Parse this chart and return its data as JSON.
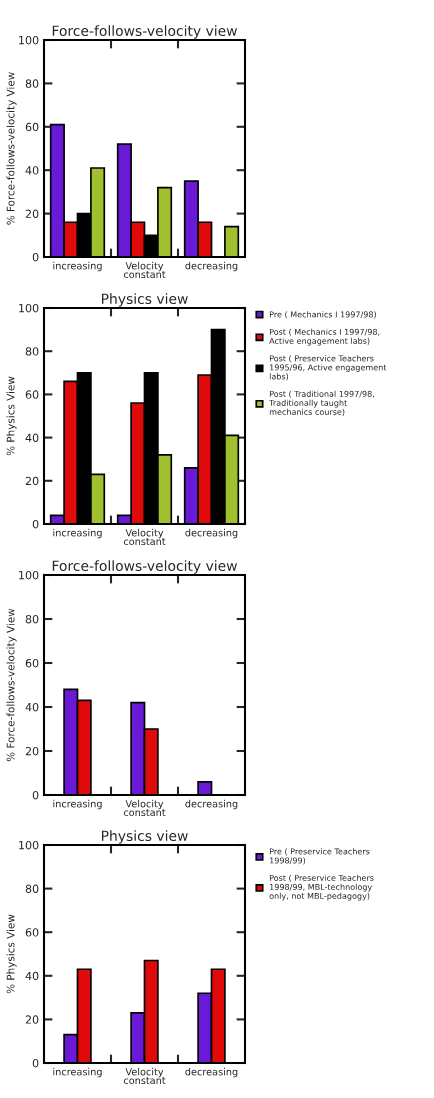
{
  "chart_data": [
    {
      "type": "bar",
      "title": "Force-follows-velocity view",
      "ylabel": "% Force-follows-velocity View",
      "categories": [
        "increasing",
        "Velocity\nconstant",
        "decreasing"
      ],
      "ylim": [
        0,
        100
      ],
      "yticks": [
        0,
        20,
        40,
        60,
        80,
        100
      ],
      "grid": false,
      "legend": false,
      "series": [
        {
          "color": "#6a1ad6",
          "values": [
            61,
            52,
            35
          ]
        },
        {
          "color": "#e00a0a",
          "values": [
            16,
            16,
            16
          ]
        },
        {
          "color": "#000000",
          "values": [
            20,
            10,
            null
          ]
        },
        {
          "color": "#a0c030",
          "values": [
            41,
            32,
            14
          ]
        }
      ]
    },
    {
      "type": "bar",
      "title": "Physics view",
      "ylabel": "% Physics View",
      "categories": [
        "increasing",
        "Velocity\nconstant",
        "decreasing"
      ],
      "ylim": [
        0,
        100
      ],
      "yticks": [
        0,
        20,
        40,
        60,
        80,
        100
      ],
      "grid": false,
      "legend": "right",
      "series": [
        {
          "name": "Pre ( Mechanics I 1997/98)",
          "color": "#6a1ad6",
          "values": [
            4,
            4,
            26
          ]
        },
        {
          "name": "Post ( Mechanics I 1997/98,\nActive engagement labs)",
          "color": "#e00a0a",
          "values": [
            66,
            56,
            69
          ]
        },
        {
          "name": "Post ( Preservice Teachers\n1995/96, Active engagement\nlabs)",
          "color": "#000000",
          "values": [
            70,
            70,
            90
          ]
        },
        {
          "name": "Post ( Traditional 1997/98,\nTraditionally taught\nmechanics course)",
          "color": "#a0c030",
          "values": [
            23,
            32,
            41
          ]
        }
      ]
    },
    {
      "type": "bar",
      "title": "Force-follows-velocity view",
      "ylabel": "% Force-follows-velocity View",
      "categories": [
        "increasing",
        "Velocity\nconstant",
        "decreasing"
      ],
      "ylim": [
        0,
        100
      ],
      "yticks": [
        0,
        20,
        40,
        60,
        80,
        100
      ],
      "grid": false,
      "legend": false,
      "series": [
        {
          "color": "#6a1ad6",
          "values": [
            48,
            42,
            6
          ]
        },
        {
          "color": "#e00a0a",
          "values": [
            43,
            30,
            null
          ]
        }
      ]
    },
    {
      "type": "bar",
      "title": "Physics view",
      "ylabel": "% Physics View",
      "categories": [
        "increasing",
        "Velocity\nconstant",
        "decreasing"
      ],
      "ylim": [
        0,
        100
      ],
      "yticks": [
        0,
        20,
        40,
        60,
        80,
        100
      ],
      "grid": false,
      "legend": "right",
      "series": [
        {
          "name": "Pre ( Preservice Teachers\n1998/99)",
          "color": "#6a1ad6",
          "values": [
            13,
            23,
            32
          ]
        },
        {
          "name": "Post ( Preservice Teachers\n1998/99, MBL-technology\nonly, not MBL-pedagogy)",
          "color": "#e00a0a",
          "values": [
            43,
            47,
            43
          ]
        }
      ]
    }
  ]
}
